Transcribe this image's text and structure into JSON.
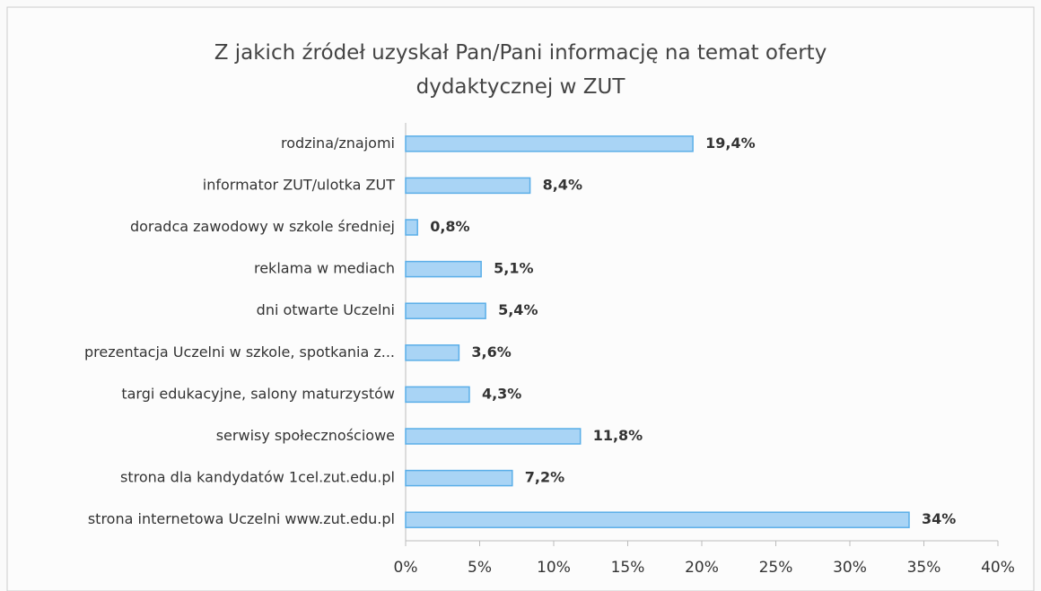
{
  "chart_data": {
    "type": "bar",
    "orientation": "horizontal",
    "title": "Z jakich  źródeł uzyskał Pan/Pani informację na temat oferty dydaktycznej w ZUT",
    "categories": [
      "rodzina/znajomi",
      "informator ZUT/ulotka ZUT",
      "doradca zawodowy w szkole średniej",
      "reklama w mediach",
      "dni otwarte Uczelni",
      "prezentacja Uczelni w szkole,  spotkania z...",
      "targi edukacyjne, salony maturzystów",
      "serwisy społecznościowe",
      "strona dla kandydatów 1cel.zut.edu.pl",
      "strona internetowa Uczelni www.zut.edu.pl"
    ],
    "values": [
      19.4,
      8.4,
      0.8,
      5.1,
      5.4,
      3.6,
      4.3,
      11.8,
      7.2,
      34
    ],
    "value_labels": [
      "19,4%",
      "8,4%",
      "0,8%",
      "5,1%",
      "5,4%",
      "3,6%",
      "4,3%",
      "11,8%",
      "7,2%",
      "34%"
    ],
    "color": "#a9d4f5",
    "xlim": [
      0,
      40
    ],
    "xticks": [
      {
        "value": 0,
        "label": "0%"
      },
      {
        "value": 5,
        "label": "5%"
      },
      {
        "value": 10,
        "label": "10%"
      },
      {
        "value": 15,
        "label": "15%"
      },
      {
        "value": 20,
        "label": "20%"
      },
      {
        "value": 25,
        "label": "25%"
      },
      {
        "value": 30,
        "label": "30%"
      },
      {
        "value": 35,
        "label": "35%"
      },
      {
        "value": 40,
        "label": "40%"
      }
    ]
  }
}
